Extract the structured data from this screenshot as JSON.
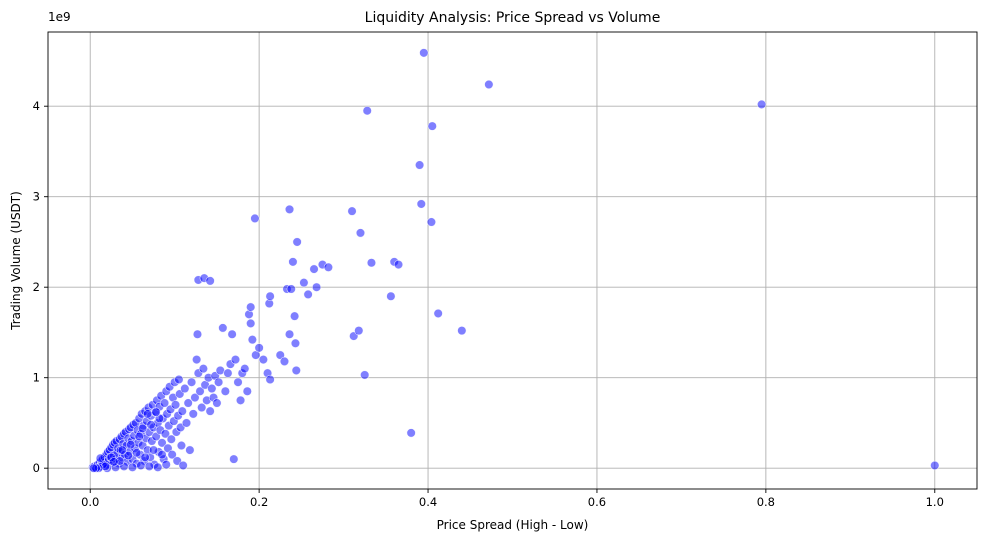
{
  "chart_data": {
    "type": "scatter",
    "title": "Liquidity Analysis: Price Spread vs Volume",
    "xlabel": "Price Spread (High - Low)",
    "ylabel": "Trading Volume (USDT)",
    "y_scale_label": "1e9",
    "xlim": [
      -0.05,
      1.05
    ],
    "ylim": [
      -0.23,
      4.82
    ],
    "x_ticks": [
      0.0,
      0.2,
      0.4,
      0.6,
      0.8,
      1.0
    ],
    "x_tick_labels": [
      "0.0",
      "0.2",
      "0.4",
      "0.6",
      "0.8",
      "1.0"
    ],
    "y_ticks": [
      0,
      1,
      2,
      3,
      4
    ],
    "y_tick_labels": [
      "0",
      "1",
      "2",
      "3",
      "4"
    ],
    "grid": true,
    "legend": "none",
    "point_color": "#0000ff",
    "points": [
      [
        0.003,
        0.01
      ],
      [
        0.005,
        0.02
      ],
      [
        0.006,
        0.005
      ],
      [
        0.008,
        0.03
      ],
      [
        0.009,
        0.04
      ],
      [
        0.01,
        0.01
      ],
      [
        0.011,
        0.06
      ],
      [
        0.012,
        0.02
      ],
      [
        0.013,
        0.08
      ],
      [
        0.014,
        0.05
      ],
      [
        0.015,
        0.1
      ],
      [
        0.016,
        0.03
      ],
      [
        0.017,
        0.12
      ],
      [
        0.018,
        0.07
      ],
      [
        0.019,
        0.15
      ],
      [
        0.02,
        0.04
      ],
      [
        0.021,
        0.18
      ],
      [
        0.022,
        0.09
      ],
      [
        0.023,
        0.2
      ],
      [
        0.024,
        0.12
      ],
      [
        0.025,
        0.23
      ],
      [
        0.026,
        0.06
      ],
      [
        0.027,
        0.26
      ],
      [
        0.028,
        0.14
      ],
      [
        0.029,
        0.28
      ],
      [
        0.03,
        0.1
      ],
      [
        0.031,
        0.3
      ],
      [
        0.032,
        0.17
      ],
      [
        0.033,
        0.22
      ],
      [
        0.034,
        0.05
      ],
      [
        0.035,
        0.32
      ],
      [
        0.036,
        0.2
      ],
      [
        0.037,
        0.35
      ],
      [
        0.038,
        0.12
      ],
      [
        0.039,
        0.27
      ],
      [
        0.04,
        0.38
      ],
      [
        0.041,
        0.15
      ],
      [
        0.042,
        0.4
      ],
      [
        0.043,
        0.25
      ],
      [
        0.044,
        0.07
      ],
      [
        0.045,
        0.33
      ],
      [
        0.046,
        0.43
      ],
      [
        0.047,
        0.18
      ],
      [
        0.048,
        0.45
      ],
      [
        0.049,
        0.3
      ],
      [
        0.05,
        0.1
      ],
      [
        0.051,
        0.48
      ],
      [
        0.052,
        0.36
      ],
      [
        0.053,
        0.22
      ],
      [
        0.054,
        0.5
      ],
      [
        0.055,
        0.05
      ],
      [
        0.056,
        0.42
      ],
      [
        0.057,
        0.28
      ],
      [
        0.058,
        0.55
      ],
      [
        0.059,
        0.15
      ],
      [
        0.06,
        0.38
      ],
      [
        0.061,
        0.6
      ],
      [
        0.062,
        0.25
      ],
      [
        0.063,
        0.47
      ],
      [
        0.064,
        0.08
      ],
      [
        0.065,
        0.63
      ],
      [
        0.066,
        0.33
      ],
      [
        0.067,
        0.52
      ],
      [
        0.068,
        0.2
      ],
      [
        0.069,
        0.67
      ],
      [
        0.07,
        0.4
      ],
      [
        0.071,
        0.12
      ],
      [
        0.072,
        0.58
      ],
      [
        0.073,
        0.3
      ],
      [
        0.074,
        0.7
      ],
      [
        0.075,
        0.45
      ],
      [
        0.076,
        0.04
      ],
      [
        0.077,
        0.62
      ],
      [
        0.078,
        0.35
      ],
      [
        0.079,
        0.75
      ],
      [
        0.08,
        0.5
      ],
      [
        0.081,
        0.18
      ],
      [
        0.082,
        0.68
      ],
      [
        0.083,
        0.42
      ],
      [
        0.084,
        0.8
      ],
      [
        0.085,
        0.28
      ],
      [
        0.086,
        0.55
      ],
      [
        0.087,
        0.1
      ],
      [
        0.088,
        0.72
      ],
      [
        0.089,
        0.38
      ],
      [
        0.09,
        0.85
      ],
      [
        0.091,
        0.6
      ],
      [
        0.092,
        0.22
      ],
      [
        0.093,
        0.47
      ],
      [
        0.094,
        0.9
      ],
      [
        0.095,
        0.65
      ],
      [
        0.096,
        0.32
      ],
      [
        0.097,
        0.15
      ],
      [
        0.098,
        0.78
      ],
      [
        0.099,
        0.52
      ],
      [
        0.1,
        0.95
      ],
      [
        0.101,
        0.7
      ],
      [
        0.102,
        0.4
      ],
      [
        0.103,
        0.08
      ],
      [
        0.104,
        0.58
      ],
      [
        0.105,
        0.98
      ],
      [
        0.106,
        0.82
      ],
      [
        0.107,
        0.45
      ],
      [
        0.108,
        0.25
      ],
      [
        0.109,
        0.63
      ],
      [
        0.11,
        0.03
      ],
      [
        0.112,
        0.88
      ],
      [
        0.114,
        0.5
      ],
      [
        0.116,
        0.72
      ],
      [
        0.118,
        0.2
      ],
      [
        0.12,
        0.95
      ],
      [
        0.122,
        0.6
      ],
      [
        0.124,
        0.78
      ],
      [
        0.126,
        1.2
      ],
      [
        0.127,
        1.48
      ],
      [
        0.128,
        1.05
      ],
      [
        0.13,
        0.85
      ],
      [
        0.132,
        0.67
      ],
      [
        0.134,
        1.1
      ],
      [
        0.136,
        0.92
      ],
      [
        0.138,
        0.75
      ],
      [
        0.14,
        1.0
      ],
      [
        0.142,
        0.63
      ],
      [
        0.144,
        0.88
      ],
      [
        0.146,
        0.78
      ],
      [
        0.148,
        1.02
      ],
      [
        0.15,
        0.72
      ],
      [
        0.152,
        0.95
      ],
      [
        0.154,
        1.08
      ],
      [
        0.157,
        1.55
      ],
      [
        0.16,
        0.85
      ],
      [
        0.163,
        1.05
      ],
      [
        0.166,
        1.15
      ],
      [
        0.168,
        1.48
      ],
      [
        0.17,
        0.1
      ],
      [
        0.172,
        1.2
      ],
      [
        0.175,
        0.95
      ],
      [
        0.178,
        0.75
      ],
      [
        0.18,
        1.05
      ],
      [
        0.183,
        1.1
      ],
      [
        0.186,
        0.85
      ],
      [
        0.188,
        1.7
      ],
      [
        0.19,
        1.78
      ],
      [
        0.19,
        1.6
      ],
      [
        0.192,
        1.42
      ],
      [
        0.196,
        1.25
      ],
      [
        0.2,
        1.33
      ],
      [
        0.205,
        1.2
      ],
      [
        0.21,
        1.05
      ],
      [
        0.213,
        0.98
      ],
      [
        0.212,
        1.82
      ],
      [
        0.213,
        1.9
      ],
      [
        0.225,
        1.25
      ],
      [
        0.23,
        1.18
      ],
      [
        0.233,
        1.98
      ],
      [
        0.236,
        1.48
      ],
      [
        0.238,
        1.98
      ],
      [
        0.24,
        2.28
      ],
      [
        0.242,
        1.68
      ],
      [
        0.243,
        1.38
      ],
      [
        0.244,
        1.08
      ],
      [
        0.245,
        2.5
      ],
      [
        0.195,
        2.76
      ],
      [
        0.236,
        2.86
      ],
      [
        0.128,
        2.08
      ],
      [
        0.135,
        2.1
      ],
      [
        0.142,
        2.07
      ],
      [
        0.253,
        2.05
      ],
      [
        0.258,
        1.92
      ],
      [
        0.265,
        2.2
      ],
      [
        0.268,
        2.0
      ],
      [
        0.275,
        2.25
      ],
      [
        0.282,
        2.22
      ],
      [
        0.31,
        2.84
      ],
      [
        0.312,
        1.46
      ],
      [
        0.318,
        1.52
      ],
      [
        0.32,
        2.6
      ],
      [
        0.325,
        1.03
      ],
      [
        0.328,
        3.95
      ],
      [
        0.333,
        2.27
      ],
      [
        0.356,
        1.9
      ],
      [
        0.36,
        2.28
      ],
      [
        0.365,
        2.25
      ],
      [
        0.38,
        0.39
      ],
      [
        0.39,
        3.35
      ],
      [
        0.392,
        2.92
      ],
      [
        0.395,
        4.59
      ],
      [
        0.404,
        2.72
      ],
      [
        0.405,
        3.78
      ],
      [
        0.412,
        1.71
      ],
      [
        0.44,
        1.52
      ],
      [
        0.472,
        4.24
      ],
      [
        0.795,
        4.02
      ],
      [
        1.0,
        0.03
      ],
      [
        0.02,
        0.0
      ],
      [
        0.03,
        0.01
      ],
      [
        0.04,
        0.02
      ],
      [
        0.05,
        0.01
      ],
      [
        0.06,
        0.03
      ],
      [
        0.07,
        0.02
      ],
      [
        0.08,
        0.01
      ],
      [
        0.09,
        0.04
      ],
      [
        0.035,
        0.08
      ],
      [
        0.045,
        0.14
      ],
      [
        0.055,
        0.17
      ],
      [
        0.065,
        0.12
      ],
      [
        0.075,
        0.2
      ],
      [
        0.085,
        0.15
      ],
      [
        0.025,
        0.12
      ],
      [
        0.015,
        0.04
      ],
      [
        0.012,
        0.11
      ],
      [
        0.062,
        0.44
      ],
      [
        0.072,
        0.48
      ],
      [
        0.082,
        0.55
      ],
      [
        0.068,
        0.6
      ],
      [
        0.078,
        0.62
      ],
      [
        0.058,
        0.35
      ],
      [
        0.048,
        0.26
      ],
      [
        0.038,
        0.2
      ],
      [
        0.028,
        0.07
      ],
      [
        0.018,
        0.02
      ],
      [
        0.01,
        0.0
      ],
      [
        0.007,
        0.0
      ],
      [
        0.004,
        0.0
      ]
    ]
  }
}
